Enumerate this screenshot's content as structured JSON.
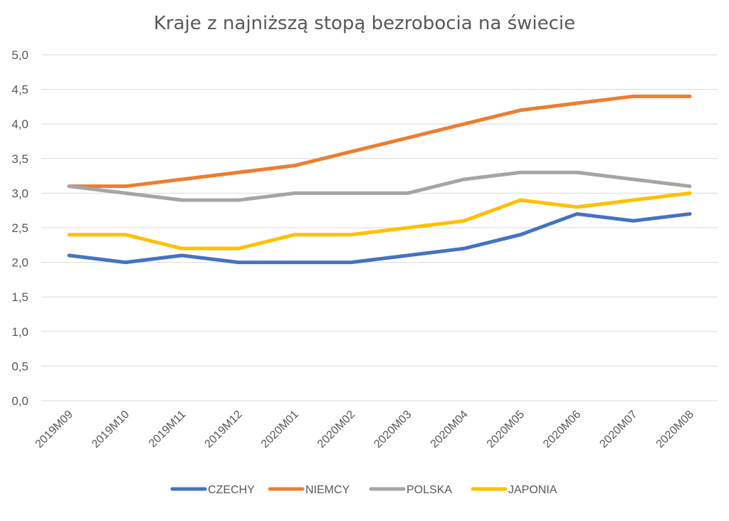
{
  "chart_data": {
    "type": "line",
    "title": "Kraje z najniższą stopą bezrobocia na świecie",
    "xlabel": "",
    "ylabel": "",
    "ylim": [
      0,
      5
    ],
    "yticks": [
      "0,0",
      "0,5",
      "1,0",
      "1,5",
      "2,0",
      "2,5",
      "3,0",
      "3,5",
      "4,0",
      "4,5",
      "5,0"
    ],
    "ytick_values": [
      0,
      0.5,
      1,
      1.5,
      2,
      2.5,
      3,
      3.5,
      4,
      4.5,
      5
    ],
    "grid": true,
    "legend_position": "bottom",
    "categories": [
      "2019M09",
      "2019M10",
      "2019M11",
      "2019M12",
      "2020M01",
      "2020M02",
      "2020M03",
      "2020M04",
      "2020M05",
      "2020M06",
      "2020M07",
      "2020M08"
    ],
    "series": [
      {
        "name": "CZECHY",
        "color": "#4472c4",
        "values": [
          2.1,
          2.0,
          2.1,
          2.0,
          2.0,
          2.0,
          2.1,
          2.2,
          2.4,
          2.7,
          2.6,
          2.7
        ]
      },
      {
        "name": "NIEMCY",
        "color": "#ed7d31",
        "values": [
          3.1,
          3.1,
          3.2,
          3.3,
          3.4,
          3.6,
          3.8,
          4.0,
          4.2,
          4.3,
          4.4,
          4.4
        ]
      },
      {
        "name": "POLSKA",
        "color": "#a5a5a5",
        "values": [
          3.1,
          3.0,
          2.9,
          2.9,
          3.0,
          3.0,
          3.0,
          3.2,
          3.3,
          3.3,
          3.2,
          3.1
        ]
      },
      {
        "name": "JAPONIA",
        "color": "#ffc000",
        "values": [
          2.4,
          2.4,
          2.2,
          2.2,
          2.4,
          2.4,
          2.5,
          2.6,
          2.9,
          2.8,
          2.9,
          3.0
        ]
      }
    ]
  }
}
